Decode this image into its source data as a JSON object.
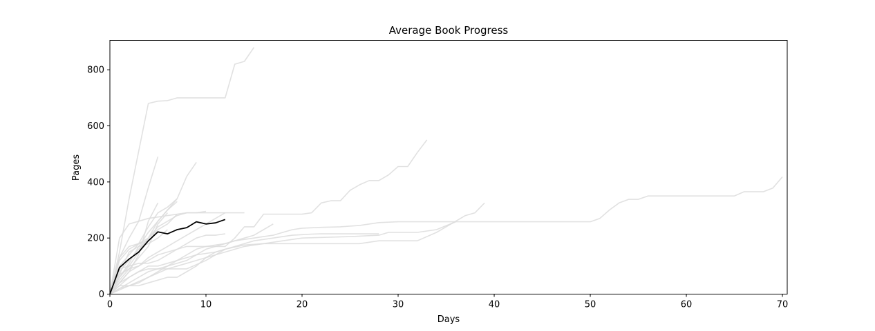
{
  "chart_data": {
    "type": "line",
    "title": "Average Book Progress",
    "xlabel": "Days",
    "ylabel": "Pages",
    "xlim": [
      0,
      70.5
    ],
    "ylim": [
      0,
      905
    ],
    "xticks": [
      0,
      10,
      20,
      30,
      40,
      50,
      60,
      70
    ],
    "yticks": [
      0,
      200,
      400,
      600,
      800
    ],
    "grid": false,
    "legend": "none",
    "colors": {
      "individual": "#dcdcdc",
      "average": "#000000"
    },
    "average": {
      "x": [
        0,
        1,
        2,
        3,
        4,
        5,
        6,
        7,
        8,
        9,
        10,
        11,
        12
      ],
      "y": [
        0,
        95,
        125,
        150,
        190,
        222,
        215,
        230,
        237,
        258,
        250,
        254,
        266
      ]
    },
    "series": [
      {
        "x": [
          0,
          1,
          2,
          3,
          4,
          5,
          6,
          7,
          8,
          9,
          10,
          11,
          12,
          13,
          14,
          15
        ],
        "y": [
          0,
          150,
          340,
          510,
          680,
          688,
          690,
          700,
          700,
          700,
          700,
          700,
          700,
          820,
          830,
          880
        ]
      },
      {
        "x": [
          0,
          1,
          2,
          3,
          4,
          5
        ],
        "y": [
          0,
          130,
          200,
          260,
          380,
          490
        ]
      },
      {
        "x": [
          0,
          1,
          2,
          3,
          4,
          5,
          6,
          7,
          8,
          9
        ],
        "y": [
          0,
          60,
          110,
          170,
          220,
          260,
          300,
          340,
          420,
          470
        ]
      },
      {
        "x": [
          0,
          1,
          2,
          3,
          4,
          5,
          6,
          7,
          8,
          9,
          10,
          11,
          12,
          13,
          14,
          15,
          16,
          17,
          18,
          19,
          20,
          21,
          22,
          23,
          24,
          25,
          26,
          27,
          28,
          29,
          30,
          31,
          32,
          33
        ],
        "y": [
          0,
          40,
          80,
          100,
          120,
          140,
          150,
          160,
          170,
          170,
          170,
          170,
          170,
          200,
          240,
          240,
          285,
          285,
          285,
          285,
          285,
          290,
          325,
          333,
          333,
          370,
          390,
          405,
          405,
          425,
          455,
          455,
          505,
          550
        ]
      },
      {
        "x": [
          0,
          1,
          2,
          3,
          4,
          5,
          6,
          7,
          8,
          9,
          10,
          11,
          12,
          13,
          14,
          15,
          16,
          17,
          18,
          19,
          20,
          22,
          24,
          26,
          28,
          30,
          35,
          40,
          45,
          50,
          51,
          52,
          53,
          54,
          55,
          56,
          60,
          65,
          66,
          67,
          68,
          69,
          70
        ],
        "y": [
          0,
          20,
          40,
          60,
          80,
          90,
          100,
          110,
          120,
          140,
          160,
          170,
          180,
          190,
          195,
          200,
          205,
          210,
          220,
          230,
          235,
          238,
          240,
          245,
          255,
          258,
          258,
          258,
          258,
          258,
          270,
          300,
          325,
          338,
          338,
          350,
          350,
          350,
          365,
          365,
          365,
          378,
          418
        ]
      },
      {
        "x": [
          0,
          2,
          4,
          6,
          8,
          10,
          12,
          14,
          16,
          18,
          20,
          22,
          24,
          26,
          28,
          30,
          32,
          34,
          36,
          37,
          38,
          39
        ],
        "y": [
          0,
          30,
          60,
          90,
          110,
          130,
          150,
          170,
          180,
          180,
          180,
          180,
          180,
          180,
          190,
          190,
          190,
          220,
          260,
          280,
          290,
          325
        ]
      },
      {
        "x": [
          0,
          1,
          2,
          3,
          4,
          5,
          6,
          7,
          8,
          10,
          12,
          14,
          16,
          18,
          20,
          25,
          28,
          29,
          30,
          32,
          34,
          36
        ],
        "y": [
          0,
          40,
          60,
          80,
          90,
          90,
          90,
          90,
          90,
          120,
          160,
          175,
          180,
          190,
          200,
          205,
          210,
          220,
          220,
          220,
          230,
          258
        ]
      },
      {
        "x": [
          0,
          1,
          2,
          3,
          4,
          5,
          6,
          7,
          8,
          9,
          10,
          11,
          12,
          13,
          14,
          15,
          16,
          17
        ],
        "y": [
          0,
          20,
          30,
          40,
          60,
          80,
          100,
          120,
          140,
          160,
          170,
          175,
          180,
          190,
          200,
          210,
          230,
          250
        ]
      },
      {
        "x": [
          0,
          1,
          2,
          3,
          4,
          5,
          6,
          7,
          8,
          9,
          10
        ],
        "y": [
          0,
          130,
          170,
          180,
          200,
          240,
          260,
          280,
          290,
          290,
          295
        ]
      },
      {
        "x": [
          0,
          1,
          2,
          3,
          4,
          5,
          6,
          7
        ],
        "y": [
          0,
          100,
          140,
          180,
          240,
          290,
          310,
          340
        ]
      },
      {
        "x": [
          0,
          1,
          2,
          3,
          4,
          5,
          6,
          7
        ],
        "y": [
          0,
          80,
          120,
          160,
          200,
          260,
          300,
          330
        ]
      },
      {
        "x": [
          0,
          1,
          2,
          3,
          4,
          5,
          6,
          7
        ],
        "y": [
          0,
          60,
          100,
          150,
          200,
          230,
          250,
          285
        ]
      },
      {
        "x": [
          0,
          1,
          2,
          3,
          4,
          5,
          6
        ],
        "y": [
          0,
          50,
          90,
          130,
          170,
          250,
          290
        ]
      },
      {
        "x": [
          0,
          1,
          2,
          3,
          4,
          5
        ],
        "y": [
          0,
          40,
          80,
          140,
          260,
          325
        ]
      },
      {
        "x": [
          0,
          1,
          2,
          3,
          4,
          5,
          6,
          7,
          8,
          9,
          10,
          11,
          12
        ],
        "y": [
          0,
          90,
          100,
          110,
          110,
          120,
          140,
          160,
          180,
          200,
          210,
          210,
          215
        ]
      },
      {
        "x": [
          0,
          1,
          2,
          3,
          4,
          5,
          6,
          7,
          8,
          9,
          10,
          11,
          12,
          13,
          14,
          15,
          16,
          17,
          18,
          19,
          20,
          21,
          22,
          23,
          24,
          25,
          26,
          27,
          28
        ],
        "y": [
          0,
          30,
          60,
          80,
          100,
          100,
          110,
          120,
          130,
          140,
          145,
          150,
          160,
          170,
          180,
          190,
          195,
          200,
          205,
          210,
          212,
          214,
          215,
          215,
          215,
          215,
          215,
          215,
          215
        ]
      },
      {
        "x": [
          0,
          1,
          2,
          3,
          4,
          5,
          6,
          7,
          8,
          9,
          10,
          11,
          12,
          13,
          14
        ],
        "y": [
          0,
          200,
          250,
          260,
          270,
          275,
          280,
          285,
          290,
          290,
          290,
          290,
          290,
          290,
          290
        ]
      },
      {
        "x": [
          0,
          1,
          2,
          3,
          4,
          5,
          6,
          7,
          8,
          9,
          10,
          11,
          12
        ],
        "y": [
          0,
          70,
          90,
          100,
          130,
          150,
          170,
          190,
          210,
          230,
          250,
          270,
          290
        ]
      },
      {
        "x": [
          0,
          1,
          2,
          3,
          4,
          5,
          6,
          7,
          8,
          9,
          10,
          11,
          12
        ],
        "y": [
          0,
          30,
          30,
          30,
          40,
          50,
          60,
          60,
          80,
          100,
          130,
          150,
          160
        ]
      },
      {
        "x": [
          0,
          1,
          2,
          3,
          4,
          5,
          6
        ],
        "y": [
          0,
          70,
          150,
          170,
          180,
          200,
          230
        ]
      },
      {
        "x": [
          0,
          1,
          2,
          3,
          4
        ],
        "y": [
          0,
          120,
          160,
          180,
          190
        ]
      }
    ]
  }
}
